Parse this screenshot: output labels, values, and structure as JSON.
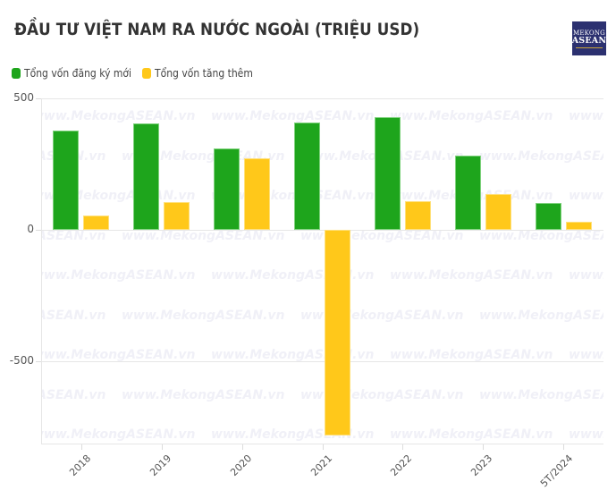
{
  "header": {
    "title": "ĐẦU TƯ VIỆT NAM RA NƯỚC NGOÀI (TRIỆU USD)",
    "logo": {
      "line1": "MEKONG",
      "line2": "ASEAN",
      "bg_color": "#2c3170"
    }
  },
  "legend": {
    "items": [
      {
        "label": "Tổng vốn đăng ký mới",
        "color": "#1ea51c"
      },
      {
        "label": "Tổng vốn tăng thêm",
        "color": "#ffc81a"
      }
    ]
  },
  "watermark": {
    "text": "www.MekongASEAN.vn"
  },
  "axis": {
    "y_ticks": [
      {
        "label": "500",
        "value": 500
      },
      {
        "label": "0",
        "value": 0
      },
      {
        "label": "-500",
        "value": -500
      }
    ]
  },
  "chart_data": {
    "type": "bar",
    "title": "ĐẦU TƯ VIỆT NAM RA NƯỚC NGOÀI (TRIỆU USD)",
    "xlabel": "",
    "ylabel": "",
    "categories": [
      "2018",
      "2019",
      "2020",
      "2021",
      "2022",
      "2023",
      "5T/2024"
    ],
    "series": [
      {
        "name": "Tổng vốn đăng ký mới",
        "color": "#1ea51c",
        "values": [
          377,
          404,
          308,
          408,
          427,
          281,
          102
        ]
      },
      {
        "name": "Tổng vốn tăng thêm",
        "color": "#ffc81a",
        "values": [
          54,
          103,
          271,
          -782,
          108,
          136,
          31
        ]
      }
    ],
    "ylim": [
      -815,
      500
    ],
    "y_ticks": [
      500,
      0,
      -500
    ],
    "grid": true,
    "legend_position": "top-left"
  }
}
